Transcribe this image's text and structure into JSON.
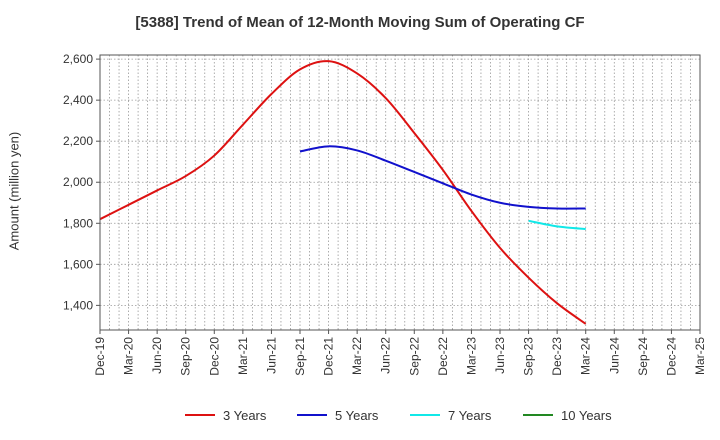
{
  "chart_data": {
    "type": "line",
    "title": "[5388]  Trend of Mean of 12-Month Moving Sum of Operating CF",
    "xlabel": "",
    "ylabel": "Amount (million yen)",
    "ylim": [
      1280,
      2620
    ],
    "yticks": [
      1400,
      1600,
      1800,
      2000,
      2200,
      2400,
      2600
    ],
    "ytick_labels": [
      "1,400",
      "1,600",
      "1,800",
      "2,000",
      "2,200",
      "2,400",
      "2,600"
    ],
    "x_start": "Dec-19",
    "xtick_labels": [
      "Dec-19",
      "Mar-20",
      "Jun-20",
      "Sep-20",
      "Dec-20",
      "Mar-21",
      "Jun-21",
      "Sep-21",
      "Dec-21",
      "Mar-22",
      "Jun-22",
      "Sep-22",
      "Dec-22",
      "Mar-23",
      "Jun-23",
      "Sep-23",
      "Dec-23",
      "Mar-24",
      "Jun-24",
      "Sep-24",
      "Dec-24",
      "Mar-25"
    ],
    "grid": true,
    "legend_position": "bottom",
    "series": [
      {
        "name": "3 Years",
        "color": "#dd1111",
        "x_offsets": [
          0,
          3,
          6,
          9,
          12,
          15,
          18,
          21,
          24,
          27,
          30,
          33,
          36,
          39,
          42,
          45,
          48,
          51
        ],
        "values": [
          1820,
          1890,
          1960,
          2030,
          2130,
          2280,
          2430,
          2550,
          2590,
          2530,
          2410,
          2240,
          2060,
          1860,
          1680,
          1535,
          1410,
          1310
        ]
      },
      {
        "name": "5 Years",
        "color": "#1111cc",
        "x_offsets": [
          21,
          24,
          27,
          30,
          33,
          36,
          39,
          42,
          45,
          48,
          51
        ],
        "values": [
          2150,
          2175,
          2155,
          2105,
          2050,
          1995,
          1940,
          1900,
          1880,
          1872,
          1872
        ]
      },
      {
        "name": "7 Years",
        "color": "#11e8e8",
        "x_offsets": [
          45,
          48,
          51
        ],
        "values": [
          1812,
          1785,
          1772
        ]
      },
      {
        "name": "10 Years",
        "color": "#228822",
        "x_offsets": [],
        "values": []
      }
    ]
  }
}
